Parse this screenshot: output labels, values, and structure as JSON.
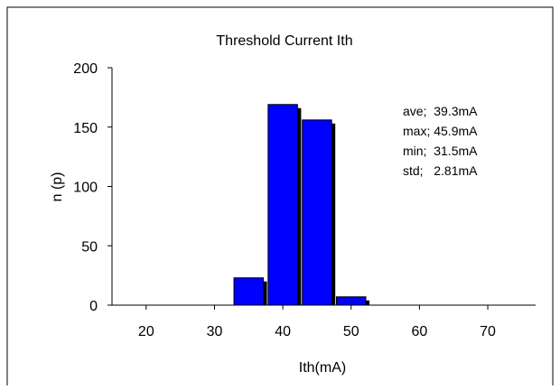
{
  "chart_data": {
    "type": "bar",
    "title": "Threshold Current  Ith",
    "xlabel": "Ith(mA)",
    "ylabel": "n (p)",
    "xlim": [
      15,
      77
    ],
    "ylim": [
      0,
      200
    ],
    "x_ticks": [
      20,
      30,
      40,
      50,
      60,
      70
    ],
    "y_ticks": [
      0,
      50,
      100,
      150,
      200
    ],
    "bin_width": 5,
    "bars": [
      {
        "center": 35,
        "value": 23
      },
      {
        "center": 40,
        "value": 169
      },
      {
        "center": 45,
        "value": 156
      },
      {
        "center": 50,
        "value": 7
      }
    ],
    "stats": [
      "ave;  39.3mA",
      "max; 45.9mA",
      "min;  31.5mA",
      "std;   2.81mA"
    ],
    "grid": false,
    "legend": "none",
    "colors": {
      "bar_fill": "#0000ff",
      "bar_shadow": "#000000",
      "axis": "#000000",
      "background": "#ffffff"
    }
  }
}
